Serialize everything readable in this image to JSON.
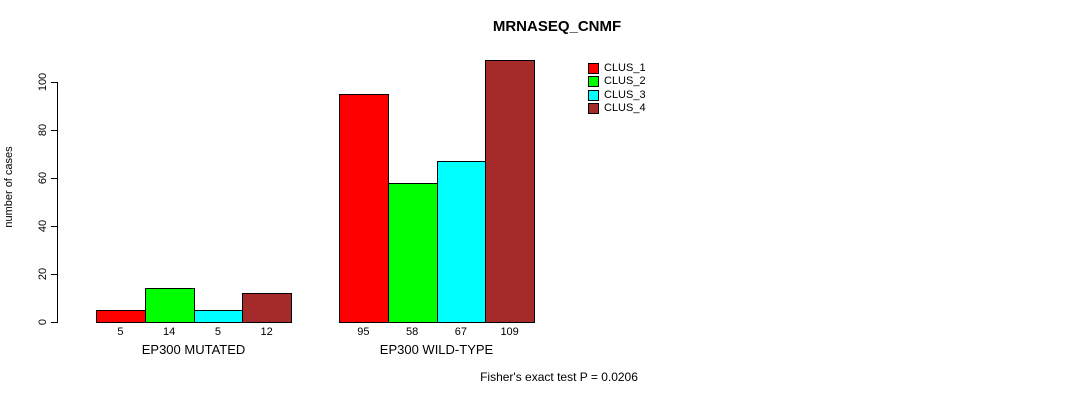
{
  "title": "MRNASEQ_CNMF",
  "y_axis_label": "number of cases",
  "footer_note": "Fisher's exact test P = 0.0206",
  "chart_data": {
    "type": "bar",
    "title": "MRNASEQ_CNMF",
    "xlabel": "",
    "ylabel": "number of cases",
    "ylim": [
      0,
      110
    ],
    "yticks": [
      0,
      20,
      40,
      60,
      80,
      100
    ],
    "grid": false,
    "legend_position": "top-right",
    "categories": [
      "EP300 MUTATED",
      "EP300 WILD-TYPE"
    ],
    "series": [
      {
        "name": "CLUS_1",
        "color": "#FF0000",
        "values": [
          5,
          95
        ]
      },
      {
        "name": "CLUS_2",
        "color": "#00FF00",
        "values": [
          14,
          58
        ]
      },
      {
        "name": "CLUS_3",
        "color": "#00FFFF",
        "values": [
          5,
          67
        ]
      },
      {
        "name": "CLUS_4",
        "color": "#A52A2A",
        "values": [
          12,
          109
        ]
      }
    ],
    "bar_labels": [
      [
        "5",
        "14",
        "5",
        "12"
      ],
      [
        "95",
        "58",
        "67",
        "109"
      ]
    ],
    "annotation": "Fisher's exact test P = 0.0206"
  }
}
